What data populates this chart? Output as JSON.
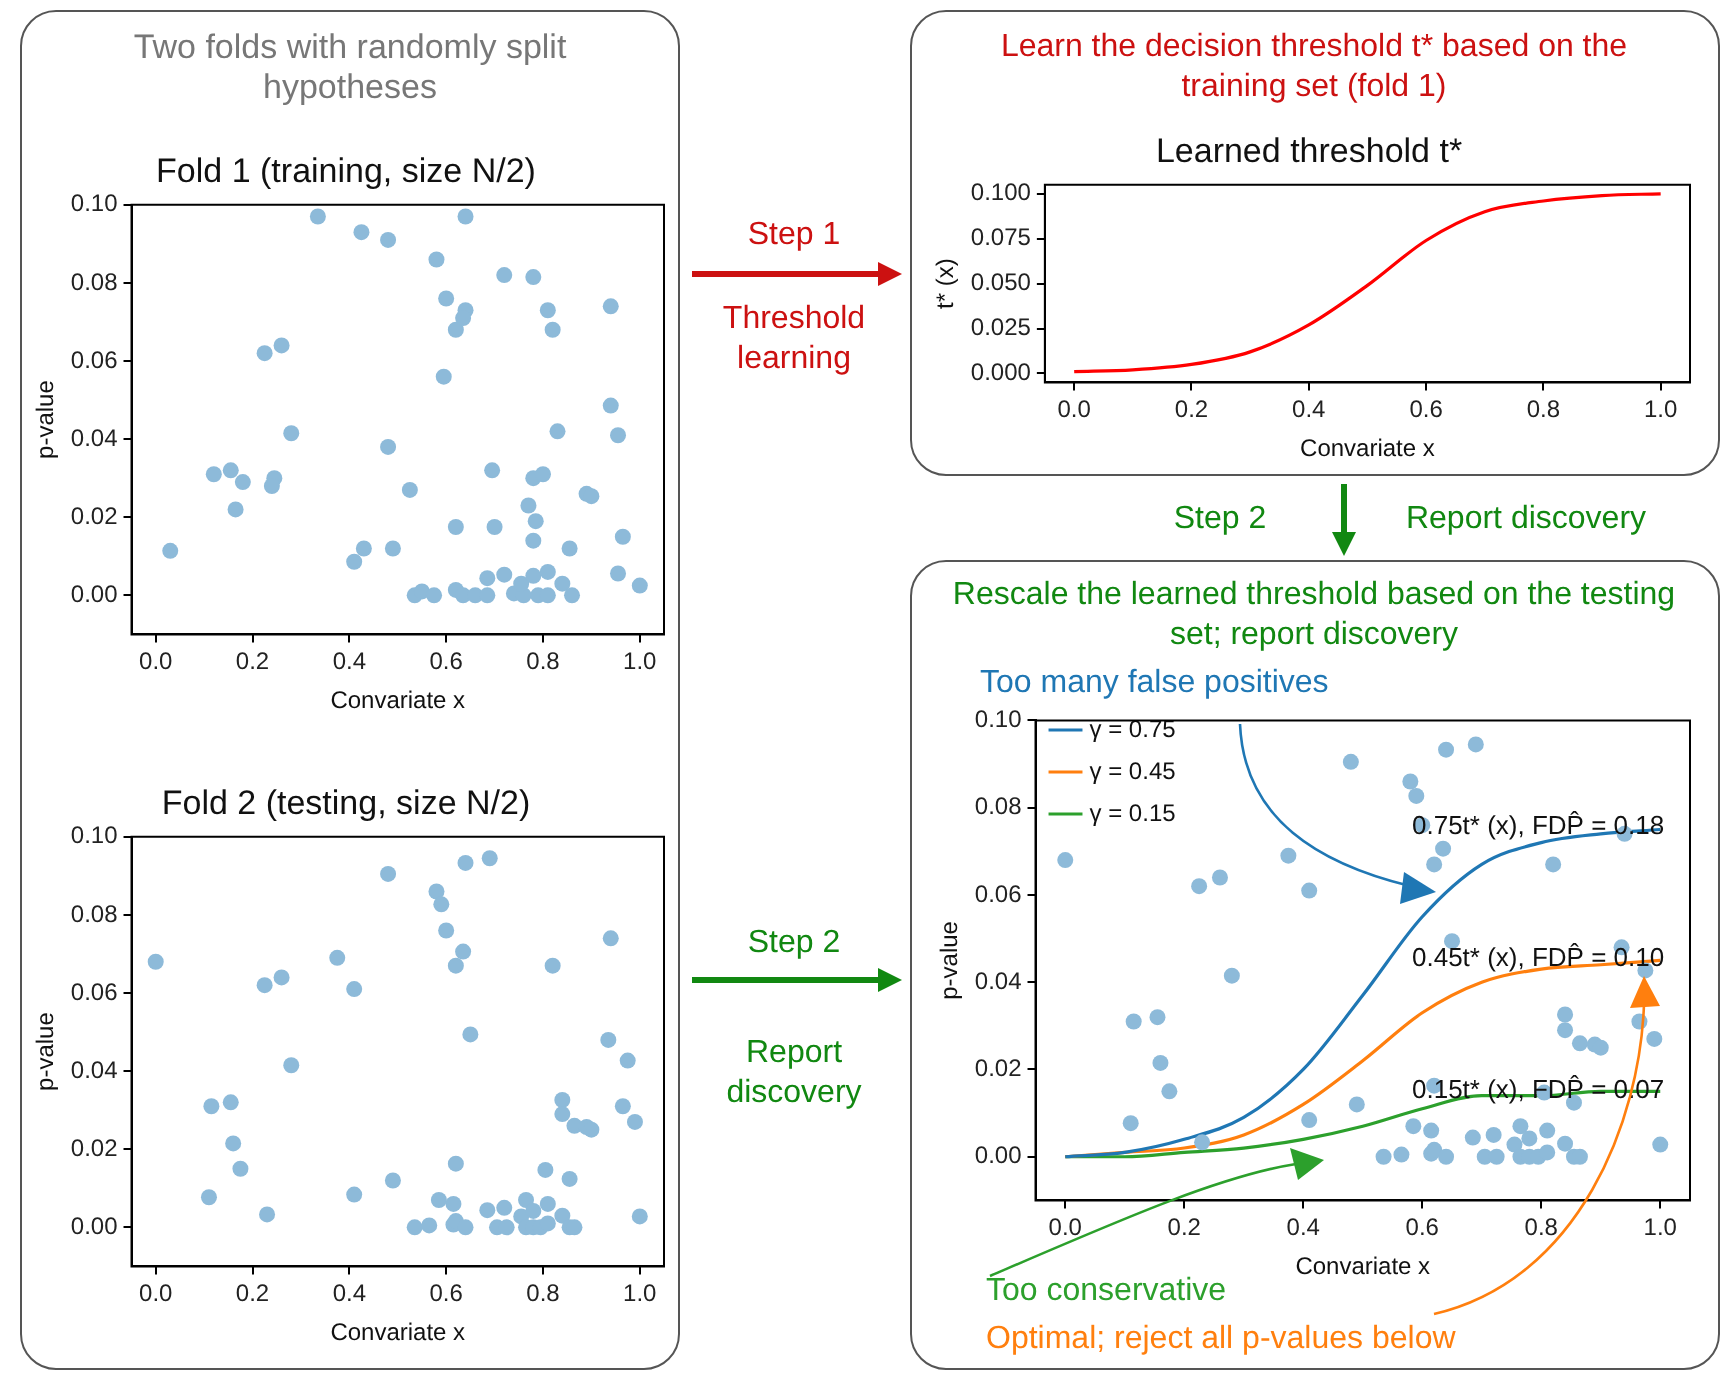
{
  "chart_data": [
    {
      "type": "scatter",
      "title": "Fold 1 (training, size N/2)",
      "xlabel": "Convariate x",
      "ylabel": "p-value",
      "annotations": [
        "Two folds with randomly split hypotheses"
      ],
      "marker": "circle",
      "grid": false,
      "xlim": [
        -0.05,
        1.05
      ],
      "ylim": [
        -0.01,
        0.1
      ],
      "xticks": [
        {
          "value": 0,
          "label": "0.0"
        },
        {
          "value": 0.2,
          "label": "0.2"
        },
        {
          "value": 0.4,
          "label": "0.4"
        },
        {
          "value": 0.6,
          "label": "0.6"
        },
        {
          "value": 0.8,
          "label": "0.8"
        },
        {
          "value": 1,
          "label": "1.0"
        }
      ],
      "yticks": [
        {
          "value": 0,
          "label": "0.00"
        },
        {
          "value": 0.02,
          "label": "0.02"
        },
        {
          "value": 0.04,
          "label": "0.04"
        },
        {
          "value": 0.06,
          "label": "0.06"
        },
        {
          "value": 0.08,
          "label": "0.08"
        },
        {
          "value": 0.1,
          "label": "0.10"
        }
      ],
      "series": [
        {
          "color": "#8dbad9",
          "x": [
            0.03,
            0.12,
            0.155,
            0.18,
            0.165,
            0.225,
            0.26,
            0.245,
            0.24,
            0.28,
            0.335,
            0.41,
            0.425,
            0.43,
            0.48,
            0.48,
            0.49,
            0.525,
            0.535,
            0.55,
            0.575,
            0.58,
            0.6,
            0.595,
            0.62,
            0.64,
            0.635,
            0.64,
            0.62,
            0.62,
            0.635,
            0.66,
            0.685,
            0.685,
            0.695,
            0.7,
            0.72,
            0.72,
            0.74,
            0.76,
            0.755,
            0.77,
            0.78,
            0.78,
            0.785,
            0.78,
            0.78,
            0.79,
            0.8,
            0.81,
            0.81,
            0.81,
            0.82,
            0.83,
            0.84,
            0.855,
            0.86,
            0.89,
            0.9,
            0.94,
            0.94,
            0.955,
            0.965,
            0.955,
            1.0
          ],
          "values": [
            0.0114,
            0.031,
            0.032,
            0.029,
            0.022,
            0.062,
            0.064,
            0.03,
            0.028,
            0.0415,
            0.097,
            0.0086,
            0.093,
            0.012,
            0.091,
            0.038,
            0.012,
            0.027,
            0.0,
            0.001,
            0.0,
            0.086,
            0.076,
            0.056,
            0.068,
            0.073,
            0.071,
            0.097,
            0.0175,
            0.0014,
            0.0,
            0.0,
            0.0,
            0.0044,
            0.032,
            0.0175,
            0.0053,
            0.082,
            0.0005,
            0.0,
            0.003,
            0.023,
            0.0815,
            0.03,
            0.019,
            0.014,
            0.005,
            0.0,
            0.031,
            0.073,
            0.006,
            0.0,
            0.068,
            0.042,
            0.003,
            0.012,
            0.0,
            0.026,
            0.0254,
            0.074,
            0.0486,
            0.041,
            0.015,
            0.0056,
            0.0025
          ]
        }
      ]
    },
    {
      "type": "line",
      "title": "Learned threshold t*",
      "xlabel": "Convariate x",
      "ylabel": "t* (x)",
      "annotations": [
        "Learn the decision threshold t* based on the training set (fold 1)",
        "Step 1",
        "Threshold learning"
      ],
      "grid": false,
      "xlim": [
        -0.05,
        1.05
      ],
      "ylim": [
        -0.005,
        0.105
      ],
      "xticks": [
        {
          "value": 0,
          "label": "0.0"
        },
        {
          "value": 0.2,
          "label": "0.2"
        },
        {
          "value": 0.4,
          "label": "0.4"
        },
        {
          "value": 0.6,
          "label": "0.6"
        },
        {
          "value": 0.8,
          "label": "0.8"
        },
        {
          "value": 1,
          "label": "1.0"
        }
      ],
      "yticks": [
        {
          "value": 0,
          "label": "0.000"
        },
        {
          "value": 0.025,
          "label": "0.025"
        },
        {
          "value": 0.05,
          "label": "0.050"
        },
        {
          "value": 0.075,
          "label": "0.075"
        },
        {
          "value": 0.1,
          "label": "0.100"
        }
      ],
      "x": [
        0,
        0.1,
        0.2,
        0.3,
        0.4,
        0.5,
        0.6,
        0.7,
        0.8,
        0.9,
        1.0
      ],
      "values": [
        0.001,
        0.002,
        0.005,
        0.012,
        0.027,
        0.049,
        0.074,
        0.09,
        0.096,
        0.099,
        0.1
      ],
      "color": "#ff0000"
    },
    {
      "type": "scatter",
      "title": "Fold 2 (testing, size N/2)",
      "xlabel": "Convariate x",
      "ylabel": "p-value",
      "annotations": [
        "Step 2",
        "Report discovery"
      ],
      "marker": "circle",
      "grid": false,
      "xlim": [
        -0.05,
        1.05
      ],
      "ylim": [
        -0.01,
        0.1
      ],
      "xticks": [
        {
          "value": 0,
          "label": "0.0"
        },
        {
          "value": 0.2,
          "label": "0.2"
        },
        {
          "value": 0.4,
          "label": "0.4"
        },
        {
          "value": 0.6,
          "label": "0.6"
        },
        {
          "value": 0.8,
          "label": "0.8"
        },
        {
          "value": 1,
          "label": "1.0"
        }
      ],
      "yticks": [
        {
          "value": 0,
          "label": "0.00"
        },
        {
          "value": 0.02,
          "label": "0.02"
        },
        {
          "value": 0.04,
          "label": "0.04"
        },
        {
          "value": 0.06,
          "label": "0.06"
        },
        {
          "value": 0.08,
          "label": "0.08"
        },
        {
          "value": 0.1,
          "label": "0.10"
        }
      ],
      "series": [
        {
          "color": "#8dbad9",
          "x": [
            0.0,
            0.11,
            0.115,
            0.155,
            0.16,
            0.175,
            0.225,
            0.23,
            0.26,
            0.28,
            0.375,
            0.41,
            0.41,
            0.48,
            0.49,
            0.535,
            0.565,
            0.58,
            0.59,
            0.6,
            0.585,
            0.615,
            0.62,
            0.62,
            0.635,
            0.64,
            0.615,
            0.62,
            0.64,
            0.65,
            0.69,
            0.685,
            0.705,
            0.725,
            0.72,
            0.755,
            0.765,
            0.765,
            0.78,
            0.78,
            0.795,
            0.805,
            0.81,
            0.81,
            0.82,
            0.84,
            0.84,
            0.84,
            0.855,
            0.855,
            0.865,
            0.865,
            0.89,
            0.9,
            0.94,
            0.935,
            0.975,
            0.965,
            0.99,
            1.0
          ],
          "values": [
            0.068,
            0.0077,
            0.031,
            0.032,
            0.0215,
            0.015,
            0.062,
            0.0033,
            0.064,
            0.0415,
            0.069,
            0.061,
            0.0084,
            0.0905,
            0.012,
            0.0,
            0.0005,
            0.086,
            0.0827,
            0.076,
            0.007,
            0.006,
            0.0163,
            0.067,
            0.0706,
            0.0933,
            0.0007,
            0.0016,
            0.0,
            0.0494,
            0.0945,
            0.0044,
            0.0,
            0.0,
            0.005,
            0.0028,
            0.007,
            0.0,
            0.0042,
            0.0,
            0.0,
            0.0147,
            0.006,
            0.001,
            0.067,
            0.0326,
            0.029,
            0.003,
            0.0124,
            0.0,
            0.0,
            0.026,
            0.0257,
            0.025,
            0.074,
            0.048,
            0.0427,
            0.031,
            0.027,
            0.0028
          ]
        }
      ]
    },
    {
      "type": "scatter",
      "title": "Rescale the learned threshold based on the testing set; report discovery",
      "xlabel": "Convariate x",
      "ylabel": "p-value",
      "grid": false,
      "legend": "top left",
      "xlim": [
        -0.05,
        1.05
      ],
      "ylim": [
        -0.01,
        0.1
      ],
      "annotations": [
        "Step 2",
        "Report discovery",
        "Too many false positives",
        "Too conservative",
        "Optimal; reject all p-values below",
        "0.75t* (x), FDP̂ = 0.18",
        "0.45t* (x), FDP̂ = 0.10",
        "0.15t* (x), FDP̂ = 0.07"
      ],
      "xticks": [
        {
          "value": 0,
          "label": "0.0"
        },
        {
          "value": 0.2,
          "label": "0.2"
        },
        {
          "value": 0.4,
          "label": "0.4"
        },
        {
          "value": 0.6,
          "label": "0.6"
        },
        {
          "value": 0.8,
          "label": "0.8"
        },
        {
          "value": 1,
          "label": "1.0"
        }
      ],
      "yticks": [
        {
          "value": 0,
          "label": "0.00"
        },
        {
          "value": 0.02,
          "label": "0.02"
        },
        {
          "value": 0.04,
          "label": "0.04"
        },
        {
          "value": 0.06,
          "label": "0.06"
        },
        {
          "value": 0.08,
          "label": "0.08"
        },
        {
          "value": 0.1,
          "label": "0.10"
        }
      ],
      "series": [
        {
          "marker": "circle",
          "color": "#8dbad9",
          "x": [
            0.0,
            0.11,
            0.115,
            0.155,
            0.16,
            0.175,
            0.225,
            0.23,
            0.26,
            0.28,
            0.375,
            0.41,
            0.41,
            0.48,
            0.49,
            0.535,
            0.565,
            0.58,
            0.59,
            0.6,
            0.585,
            0.615,
            0.62,
            0.62,
            0.635,
            0.64,
            0.615,
            0.62,
            0.64,
            0.65,
            0.69,
            0.685,
            0.705,
            0.725,
            0.72,
            0.755,
            0.765,
            0.765,
            0.78,
            0.78,
            0.795,
            0.805,
            0.81,
            0.81,
            0.82,
            0.84,
            0.84,
            0.84,
            0.855,
            0.855,
            0.865,
            0.865,
            0.89,
            0.9,
            0.94,
            0.935,
            0.975,
            0.965,
            0.99,
            1.0
          ],
          "values": [
            0.068,
            0.0077,
            0.031,
            0.032,
            0.0215,
            0.015,
            0.062,
            0.0033,
            0.064,
            0.0415,
            0.069,
            0.061,
            0.0084,
            0.0905,
            0.012,
            0.0,
            0.0005,
            0.086,
            0.0827,
            0.076,
            0.007,
            0.006,
            0.0163,
            0.067,
            0.0706,
            0.0933,
            0.0007,
            0.0016,
            0.0,
            0.0494,
            0.0945,
            0.0044,
            0.0,
            0.0,
            0.005,
            0.0028,
            0.007,
            0.0,
            0.0042,
            0.0,
            0.0,
            0.0147,
            0.006,
            0.001,
            0.067,
            0.0326,
            0.029,
            0.003,
            0.0124,
            0.0,
            0.0,
            0.026,
            0.0257,
            0.025,
            0.074,
            0.048,
            0.0427,
            0.031,
            0.027,
            0.0028
          ]
        },
        {
          "type": "line",
          "marker": "none",
          "name": "γ = 0.75",
          "color": "#1f77b4",
          "x": [
            0,
            0.1,
            0.2,
            0.3,
            0.4,
            0.5,
            0.6,
            0.7,
            0.8,
            0.9,
            1.0
          ],
          "values": [
            0.0,
            0.001,
            0.004,
            0.009,
            0.02,
            0.037,
            0.055,
            0.067,
            0.072,
            0.074,
            0.075
          ]
        },
        {
          "type": "line",
          "marker": "none",
          "name": "γ = 0.45",
          "color": "#ff7f0e",
          "x": [
            0,
            0.1,
            0.2,
            0.3,
            0.4,
            0.5,
            0.6,
            0.7,
            0.8,
            0.9,
            1.0
          ],
          "values": [
            0.0,
            0.001,
            0.002,
            0.005,
            0.012,
            0.022,
            0.033,
            0.04,
            0.043,
            0.044,
            0.045
          ]
        },
        {
          "type": "line",
          "marker": "none",
          "name": "γ = 0.15",
          "color": "#2ca02c",
          "x": [
            0,
            0.1,
            0.2,
            0.3,
            0.4,
            0.5,
            0.6,
            0.7,
            0.8,
            0.9,
            1.0
          ],
          "values": [
            0.0,
            0.0,
            0.001,
            0.002,
            0.004,
            0.007,
            0.011,
            0.014,
            0.014,
            0.015,
            0.015
          ]
        }
      ]
    }
  ]
}
